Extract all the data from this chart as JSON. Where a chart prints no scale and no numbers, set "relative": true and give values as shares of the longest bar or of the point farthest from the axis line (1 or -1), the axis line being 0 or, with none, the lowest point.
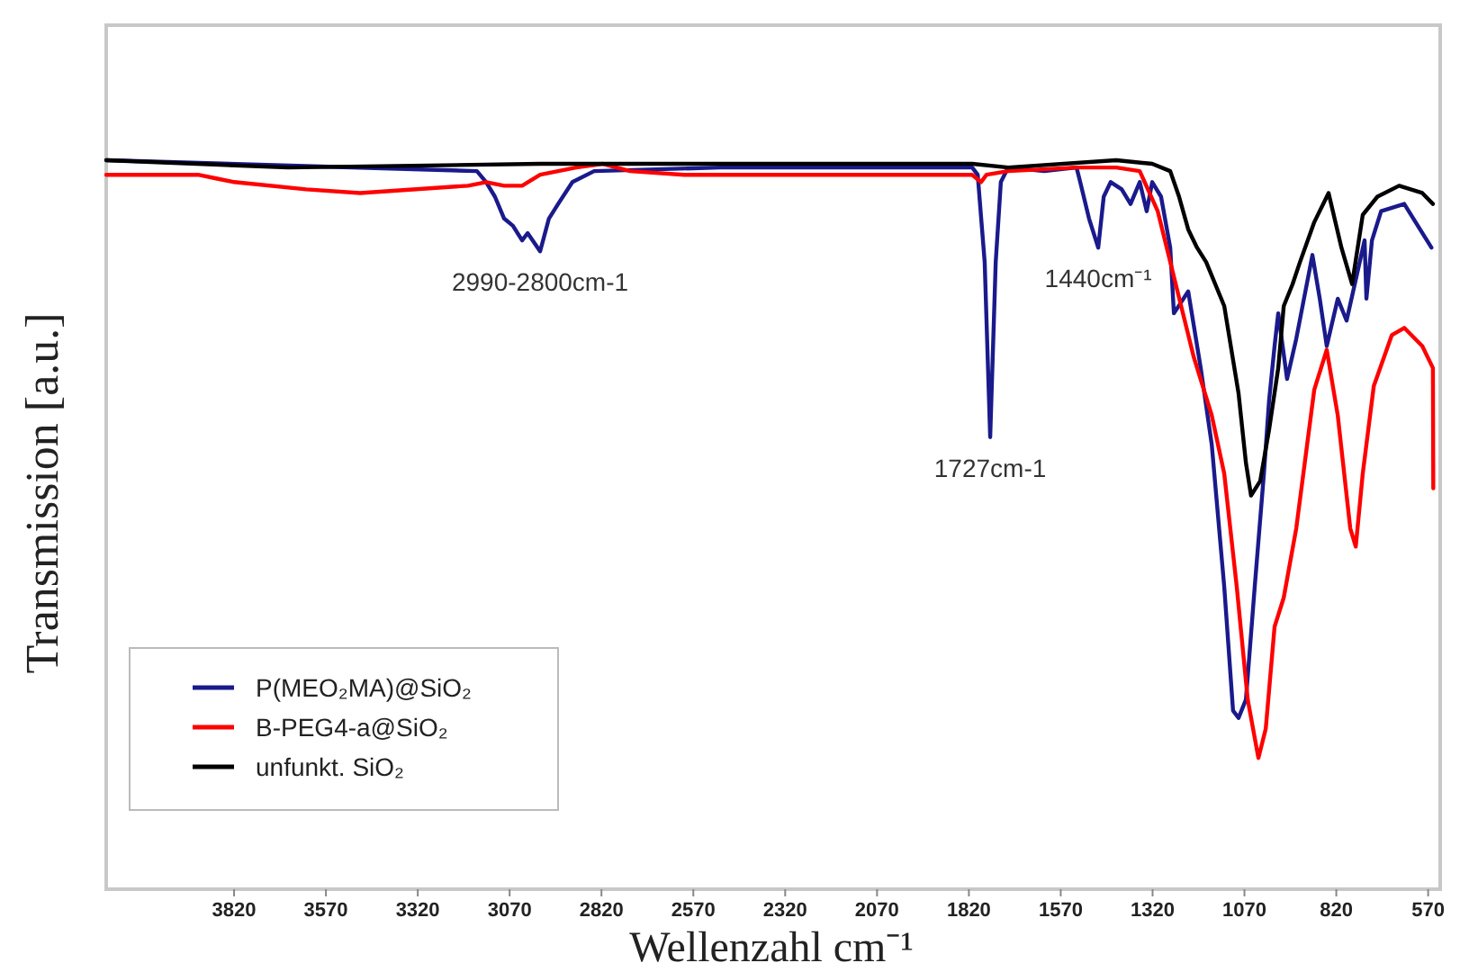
{
  "chart_data": {
    "type": "line",
    "relative": true,
    "xlabel": "Wellenzahl cm⁻¹",
    "ylabel": "Transmission [a.u.]",
    "xlim": [
      4168,
      547
    ],
    "xticks": [
      3820,
      3570,
      3320,
      3070,
      2820,
      2570,
      2320,
      2070,
      1820,
      1570,
      1320,
      1070,
      820,
      570
    ],
    "grid": false,
    "legend": "bottom left",
    "marker": "none",
    "line_style": "solid",
    "annotations": [
      {
        "text": "2990-2800cm-1",
        "x": 2987,
        "y": 0.875
      },
      {
        "text": "1727cm-1",
        "x": 1762,
        "y": 0.62
      },
      {
        "text": "1440cm⁻¹",
        "x": 1468,
        "y": 0.88
      }
    ],
    "series": [
      {
        "name": "P(MEO₂MA)@SiO₂",
        "color": "#1a1a8c",
        "x": [
          4168,
          3159,
          3134,
          3110,
          3085,
          3061,
          3036,
          3021,
          2987,
          2963,
          2938,
          2899,
          2840,
          2497,
          1811,
          1796,
          1777,
          1762,
          1747,
          1733,
          1713,
          1615,
          1527,
          1517,
          1493,
          1468,
          1453,
          1434,
          1404,
          1380,
          1355,
          1336,
          1321,
          1297,
          1272,
          1262,
          1223,
          1189,
          1159,
          1125,
          1101,
          1086,
          1066,
          1042,
          1017,
          1003,
          988,
          978,
          954,
          929,
          885,
          865,
          846,
          816,
          792,
          743,
          738,
          723,
          698,
          635,
          561
        ],
        "values": [
          1.0,
          0.985,
          0.97,
          0.95,
          0.92,
          0.91,
          0.89,
          0.9,
          0.875,
          0.92,
          0.94,
          0.97,
          0.985,
          0.99,
          0.99,
          0.98,
          0.86,
          0.62,
          0.86,
          0.97,
          0.99,
          0.985,
          0.99,
          0.97,
          0.92,
          0.88,
          0.95,
          0.97,
          0.96,
          0.94,
          0.97,
          0.93,
          0.97,
          0.95,
          0.88,
          0.79,
          0.82,
          0.715,
          0.61,
          0.415,
          0.245,
          0.235,
          0.26,
          0.415,
          0.57,
          0.67,
          0.745,
          0.79,
          0.7,
          0.755,
          0.87,
          0.81,
          0.745,
          0.81,
          0.78,
          0.89,
          0.81,
          0.89,
          0.93,
          0.94,
          0.88
        ]
      },
      {
        "name": "B-PEG4-a@SiO₂",
        "color": "#ff0000",
        "x": [
          4168,
          3918,
          3869,
          3820,
          3624,
          3477,
          3183,
          3134,
          3085,
          3036,
          2987,
          2889,
          2816,
          2742,
          2595,
          1811,
          1787,
          1772,
          1713,
          1527,
          1419,
          1355,
          1306,
          1257,
          1208,
          1159,
          1125,
          1091,
          1061,
          1032,
          1012,
          988,
          963,
          929,
          880,
          846,
          816,
          782,
          767,
          748,
          718,
          669,
          635,
          586,
          557,
          556
        ],
        "values": [
          0.98,
          0.98,
          0.975,
          0.97,
          0.96,
          0.955,
          0.965,
          0.97,
          0.965,
          0.965,
          0.98,
          0.99,
          0.995,
          0.985,
          0.98,
          0.98,
          0.97,
          0.98,
          0.985,
          0.99,
          0.99,
          0.985,
          0.93,
          0.83,
          0.73,
          0.65,
          0.57,
          0.415,
          0.26,
          0.18,
          0.22,
          0.36,
          0.4,
          0.495,
          0.685,
          0.74,
          0.65,
          0.495,
          0.47,
          0.57,
          0.69,
          0.76,
          0.77,
          0.745,
          0.715,
          0.55
        ]
      },
      {
        "name": "unfunkt. SiO₂",
        "color": "#000000",
        "x": [
          4168,
          3673,
          2987,
          1811,
          1713,
          1419,
          1321,
          1272,
          1248,
          1223,
          1199,
          1174,
          1125,
          1086,
          1066,
          1052,
          1027,
          1003,
          978,
          963,
          939,
          919,
          880,
          841,
          806,
          777,
          748,
          708,
          649,
          586,
          557
        ],
        "values": [
          1.0,
          0.99,
          0.995,
          0.995,
          0.99,
          1.0,
          0.995,
          0.985,
          0.95,
          0.905,
          0.88,
          0.86,
          0.8,
          0.68,
          0.585,
          0.54,
          0.56,
          0.63,
          0.715,
          0.8,
          0.83,
          0.86,
          0.915,
          0.955,
          0.88,
          0.83,
          0.925,
          0.95,
          0.965,
          0.955,
          0.94
        ]
      }
    ]
  }
}
